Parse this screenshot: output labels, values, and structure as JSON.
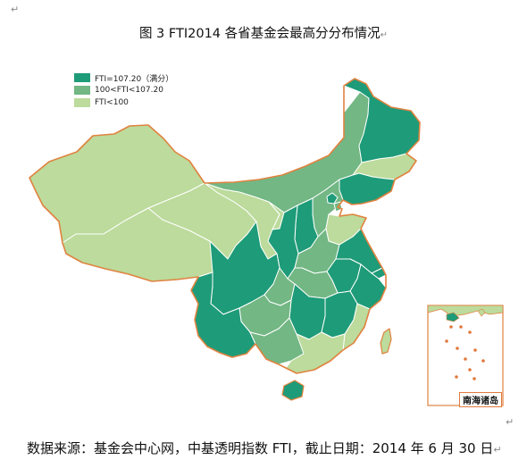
{
  "title": "图 3 FTI2014 各省基金会最高分分布情况",
  "legend": [
    {
      "label": "FTI=107.20（满分）",
      "color": "#1e9b78"
    },
    {
      "label": "100<FTI<107.20",
      "color": "#72b784"
    },
    {
      "label": "FTI<100",
      "color": "#bcdb9c"
    }
  ],
  "colors": {
    "border": "#e0823f",
    "internal_border": "#ffffff",
    "island_dots": "#e07a3c"
  },
  "inset_label": "南海诸岛",
  "source": "数据来源：基金会中心网，中基透明指数 FTI，截止日期：2014 年 6 月 30 日",
  "paragraph_mark": "↵",
  "provinces": [
    {
      "name": "新疆",
      "level": "low"
    },
    {
      "name": "西藏",
      "level": "low"
    },
    {
      "name": "青海",
      "level": "low"
    },
    {
      "name": "甘肃",
      "level": "low"
    },
    {
      "name": "内蒙古",
      "level": "mid"
    },
    {
      "name": "黑龙江",
      "level": "high"
    },
    {
      "name": "吉林",
      "level": "low"
    },
    {
      "name": "辽宁",
      "level": "high"
    },
    {
      "name": "河北",
      "level": "mid"
    },
    {
      "name": "北京",
      "level": "high"
    },
    {
      "name": "天津",
      "level": "mid"
    },
    {
      "name": "山西",
      "level": "high"
    },
    {
      "name": "山东",
      "level": "low"
    },
    {
      "name": "宁夏",
      "level": "low"
    },
    {
      "name": "陕西",
      "level": "high"
    },
    {
      "name": "河南",
      "level": "mid"
    },
    {
      "name": "江苏",
      "level": "high"
    },
    {
      "name": "安徽",
      "level": "high"
    },
    {
      "name": "上海",
      "level": "high"
    },
    {
      "name": "浙江",
      "level": "high"
    },
    {
      "name": "四川",
      "level": "high"
    },
    {
      "name": "重庆",
      "level": "mid"
    },
    {
      "name": "湖北",
      "level": "mid"
    },
    {
      "name": "湖南",
      "level": "high"
    },
    {
      "name": "江西",
      "level": "high"
    },
    {
      "name": "福建",
      "level": "low"
    },
    {
      "name": "贵州",
      "level": "mid"
    },
    {
      "name": "云南",
      "level": "high"
    },
    {
      "name": "广西",
      "level": "mid"
    },
    {
      "name": "广东",
      "level": "low"
    },
    {
      "name": "海南",
      "level": "high"
    },
    {
      "name": "台湾",
      "level": "low"
    }
  ],
  "south_sea_islands": [
    "dot",
    "dot",
    "dot",
    "dot",
    "dot",
    "dot",
    "dot",
    "dot",
    "dot",
    "dot",
    "dot"
  ]
}
